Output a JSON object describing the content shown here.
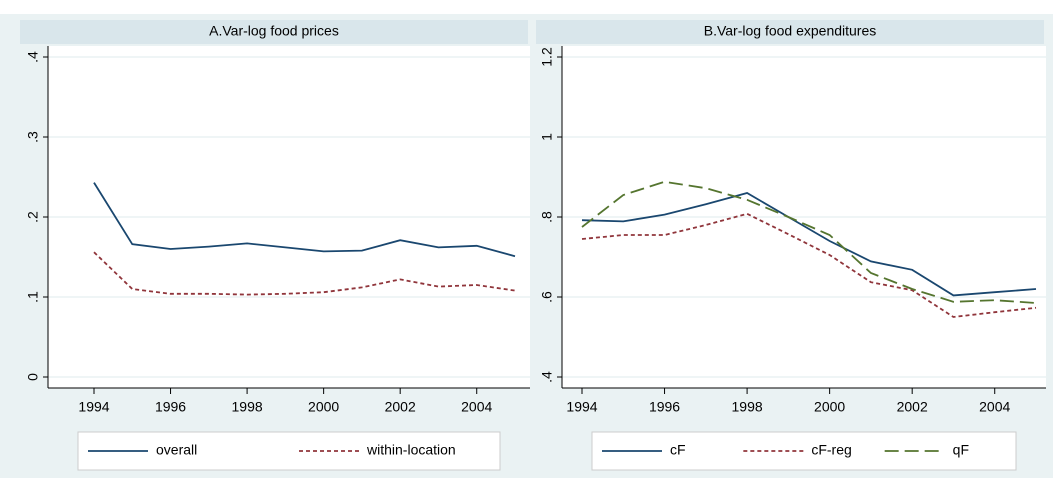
{
  "chart_data": [
    {
      "type": "line",
      "title": "A.Var-log food prices",
      "x": [
        1994,
        1995,
        1996,
        1997,
        1998,
        1999,
        2000,
        2001,
        2002,
        2003,
        2004,
        2005
      ],
      "series": [
        {
          "name": "overall",
          "color": "#1a476f",
          "dash": "solid",
          "values": [
            0.243,
            0.166,
            0.16,
            0.163,
            0.167,
            0.162,
            0.157,
            0.158,
            0.171,
            0.162,
            0.164,
            0.151
          ]
        },
        {
          "name": "within-location",
          "color": "#90353b",
          "dash": "dotted",
          "values": [
            0.156,
            0.11,
            0.104,
            0.104,
            0.103,
            0.104,
            0.106,
            0.112,
            0.122,
            0.113,
            0.115,
            0.108
          ]
        }
      ],
      "xlim": [
        1994,
        2005
      ],
      "xticks": [
        1994,
        1996,
        1998,
        2000,
        2002,
        2004
      ],
      "ylim": [
        0,
        0.4
      ],
      "yticks": [
        0,
        {
          "value": 0.1,
          "label": ".1"
        },
        {
          "value": 0.2,
          "label": ".2"
        },
        {
          "value": 0.3,
          "label": ".3"
        },
        {
          "value": 0.4,
          "label": ".4"
        }
      ],
      "grid": true
    },
    {
      "type": "line",
      "title": "B.Var-log food expenditures",
      "x": [
        1994,
        1995,
        1996,
        1997,
        1998,
        1999,
        2000,
        2001,
        2002,
        2003,
        2004,
        2005
      ],
      "series": [
        {
          "name": "cF",
          "color": "#1a476f",
          "dash": "solid",
          "values": [
            0.792,
            0.789,
            0.806,
            0.832,
            0.86,
            0.8,
            0.74,
            0.689,
            0.668,
            0.604,
            0.612,
            0.62
          ]
        },
        {
          "name": "cF-reg",
          "color": "#90353b",
          "dash": "dotted",
          "values": [
            0.745,
            0.755,
            0.755,
            0.78,
            0.808,
            0.757,
            0.705,
            0.637,
            0.617,
            0.55,
            0.562,
            0.573
          ]
        },
        {
          "name": "qF",
          "color": "#55752f",
          "dash": "longdash",
          "values": [
            0.775,
            0.855,
            0.888,
            0.872,
            0.843,
            0.8,
            0.755,
            0.66,
            0.62,
            0.588,
            0.592,
            0.585
          ]
        }
      ],
      "xlim": [
        1994,
        2005
      ],
      "xticks": [
        1994,
        1996,
        1998,
        2000,
        2002,
        2004
      ],
      "ylim": [
        0.4,
        1.2
      ],
      "yticks": [
        {
          "value": 0.4,
          "label": ".4"
        },
        {
          "value": 0.6,
          "label": ".6"
        },
        {
          "value": 0.8,
          "label": ".8"
        },
        1,
        {
          "value": 1.2,
          "label": "1.2"
        }
      ],
      "grid": true
    }
  ]
}
